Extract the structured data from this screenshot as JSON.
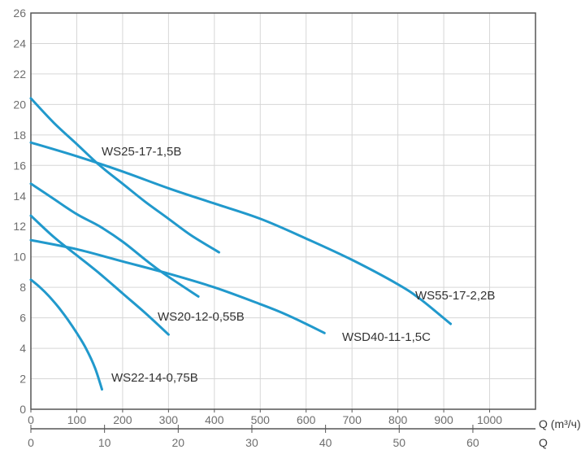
{
  "chart_data": {
    "type": "line",
    "title": "",
    "xlabel": "Q (m³/ч)",
    "x2label": "Q",
    "ylabel": "",
    "xlim": [
      0,
      1100
    ],
    "x2lim": [
      0,
      68.5
    ],
    "ylim": [
      0,
      26
    ],
    "grid": true,
    "legend": "none",
    "line_color": "#2199cc",
    "y_ticks": [
      0,
      2,
      4,
      6,
      8,
      10,
      12,
      14,
      16,
      18,
      20,
      22,
      24,
      26
    ],
    "x_ticks": [
      0,
      100,
      200,
      300,
      400,
      500,
      600,
      700,
      800,
      900,
      1000
    ],
    "x2_ticks": [
      0,
      10,
      20,
      30,
      40,
      50,
      60
    ],
    "series": [
      {
        "name": "WS25-17-1,5B",
        "x": [
          0,
          50,
          100,
          150,
          200,
          250,
          300,
          350,
          410
        ],
        "y": [
          20.4,
          18.8,
          17.4,
          16.0,
          14.8,
          13.6,
          12.5,
          11.4,
          10.3
        ]
      },
      {
        "name": "WS55-17-2,2B",
        "x": [
          0,
          100,
          200,
          300,
          400,
          500,
          600,
          700,
          800,
          850,
          915
        ],
        "y": [
          17.5,
          16.6,
          15.6,
          14.5,
          13.5,
          12.5,
          11.2,
          9.8,
          8.2,
          7.2,
          5.6
        ]
      },
      {
        "name": "WS20-12-0,55B",
        "x": [
          0,
          50,
          100,
          150,
          200,
          250,
          300
        ],
        "y": [
          12.7,
          11.3,
          10.1,
          8.9,
          7.6,
          6.3,
          4.9
        ]
      },
      {
        "name": "WSD40-11-1,5C",
        "x": [
          0,
          100,
          200,
          300,
          400,
          500,
          550,
          600,
          640
        ],
        "y": [
          11.1,
          10.5,
          9.7,
          8.9,
          8.0,
          6.9,
          6.3,
          5.6,
          5.0
        ]
      },
      {
        "name": "",
        "x": [
          0,
          50,
          100,
          150,
          200,
          250,
          290,
          365
        ],
        "y": [
          14.8,
          13.8,
          12.8,
          12.0,
          11.0,
          9.8,
          8.9,
          7.4
        ]
      },
      {
        "name": "WS22-14-0,75B",
        "x": [
          0,
          20,
          40,
          60,
          80,
          100,
          120,
          140,
          155
        ],
        "y": [
          8.5,
          8.0,
          7.4,
          6.7,
          5.9,
          5.0,
          4.0,
          2.7,
          1.3
        ]
      }
    ]
  }
}
